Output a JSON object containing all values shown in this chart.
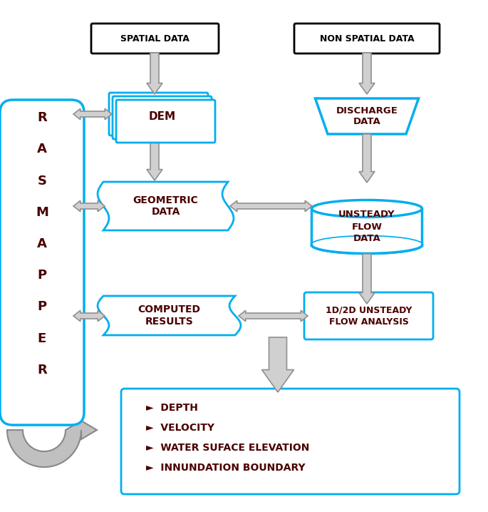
{
  "bg_color": "#ffffff",
  "cyan": "#00AEEF",
  "dark_cyan": "#0096C8",
  "gray": "#A0A0A0",
  "text_color": "#1a1a1a",
  "bold_color": "#8B0000",
  "title_spatial": "SPATIAL DATA",
  "title_nonspatial": "NON SPATIAL DATA",
  "rasmapper_letters": [
    "R",
    "A",
    "S",
    "M",
    "A",
    "P",
    "P",
    "E",
    "R"
  ],
  "dem_label": "DEM",
  "geometric_label": "GEOMETRIC\nDATA",
  "discharge_label": "DISCHARGE\nDATA",
  "unsteady_label": "UNSTEADY\nFLOW\nDATA",
  "computed_label": "COMPUTED\nRESULTS",
  "flow_analysis_label": "1D/2D UNSTEADY\nFLOW ANALYSIS",
  "output_items": [
    "►  DEPTH",
    "►  VELOCITY",
    "►  WATER SUFACE ELEVATION",
    "►  INNUNDATION BOUNDARY"
  ]
}
